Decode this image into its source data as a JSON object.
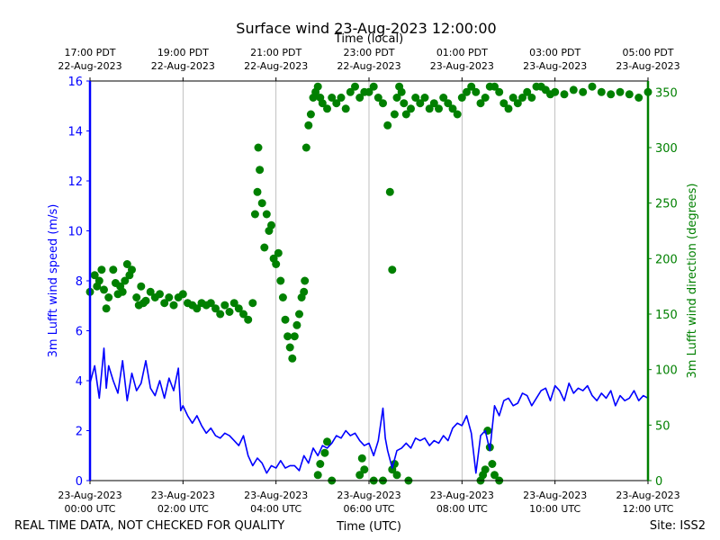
{
  "chart_data": {
    "type": "line",
    "title": "Surface wind 23-Aug-2023 12:00:00",
    "top_axis_label": "Time (local)",
    "xlabel": "Time (UTC)",
    "ylabel_left": "3m Lufft wind speed (m/s)",
    "ylabel_right": "3m Lufft wind direction (degrees)",
    "footer_left": "REAL TIME DATA, NOT CHECKED FOR QUALITY",
    "footer_right": "Site: ISS2",
    "xlim_hours": [
      0,
      12
    ],
    "ylim_left": [
      0,
      16
    ],
    "ylim_right": [
      0,
      360
    ],
    "grid": "vertical",
    "left_ticks": [
      0,
      2,
      4,
      6,
      8,
      10,
      12,
      14,
      16
    ],
    "right_ticks": [
      0,
      50,
      100,
      150,
      200,
      250,
      300,
      350
    ],
    "bottom_ticks": [
      {
        "h": 0,
        "l1": "23-Aug-2023",
        "l2": "00:00 UTC"
      },
      {
        "h": 2,
        "l1": "23-Aug-2023",
        "l2": "02:00 UTC"
      },
      {
        "h": 4,
        "l1": "23-Aug-2023",
        "l2": "04:00 UTC"
      },
      {
        "h": 6,
        "l1": "23-Aug-2023",
        "l2": "06:00 UTC"
      },
      {
        "h": 8,
        "l1": "23-Aug-2023",
        "l2": "08:00 UTC"
      },
      {
        "h": 10,
        "l1": "23-Aug-2023",
        "l2": "10:00 UTC"
      },
      {
        "h": 12,
        "l1": "23-Aug-2023",
        "l2": "12:00 UTC"
      }
    ],
    "top_ticks": [
      {
        "h": 0,
        "l1": "17:00 PDT",
        "l2": "22-Aug-2023"
      },
      {
        "h": 2,
        "l1": "19:00 PDT",
        "l2": "22-Aug-2023"
      },
      {
        "h": 4,
        "l1": "21:00 PDT",
        "l2": "22-Aug-2023"
      },
      {
        "h": 6,
        "l1": "23:00 PDT",
        "l2": "22-Aug-2023"
      },
      {
        "h": 8,
        "l1": "01:00 PDT",
        "l2": "23-Aug-2023"
      },
      {
        "h": 10,
        "l1": "03:00 PDT",
        "l2": "23-Aug-2023"
      },
      {
        "h": 12,
        "l1": "05:00 PDT",
        "l2": "23-Aug-2023"
      }
    ],
    "series": [
      {
        "name": "3m Lufft wind speed",
        "axis": "left",
        "color": "#0000ff",
        "style": "line",
        "x": [
          0,
          0.1,
          0.2,
          0.3,
          0.35,
          0.4,
          0.5,
          0.6,
          0.7,
          0.8,
          0.9,
          1.0,
          1.1,
          1.2,
          1.3,
          1.4,
          1.5,
          1.6,
          1.7,
          1.8,
          1.9,
          1.95,
          2.0,
          2.1,
          2.2,
          2.3,
          2.4,
          2.5,
          2.6,
          2.7,
          2.8,
          2.9,
          3.0,
          3.1,
          3.2,
          3.3,
          3.4,
          3.5,
          3.6,
          3.7,
          3.8,
          3.9,
          4.0,
          4.1,
          4.2,
          4.3,
          4.4,
          4.5,
          4.6,
          4.7,
          4.8,
          4.9,
          5.0,
          5.1,
          5.2,
          5.3,
          5.4,
          5.5,
          5.6,
          5.7,
          5.8,
          5.9,
          6.0,
          6.1,
          6.2,
          6.3,
          6.35,
          6.4,
          6.5,
          6.6,
          6.7,
          6.8,
          6.9,
          7.0,
          7.1,
          7.2,
          7.3,
          7.4,
          7.5,
          7.6,
          7.7,
          7.8,
          7.9,
          8.0,
          8.1,
          8.2,
          8.3,
          8.4,
          8.5,
          8.6,
          8.7,
          8.8,
          8.9,
          9.0,
          9.1,
          9.2,
          9.3,
          9.4,
          9.5,
          9.6,
          9.7,
          9.8,
          9.9,
          10.0,
          10.1,
          10.2,
          10.3,
          10.4,
          10.5,
          10.6,
          10.7,
          10.8,
          10.9,
          11.0,
          11.1,
          11.2,
          11.3,
          11.4,
          11.5,
          11.6,
          11.7,
          11.8,
          11.9,
          12.0
        ],
        "values": [
          3.9,
          4.6,
          3.3,
          5.3,
          3.7,
          4.6,
          4.0,
          3.5,
          4.8,
          3.2,
          4.3,
          3.6,
          3.9,
          4.8,
          3.7,
          3.4,
          4.0,
          3.3,
          4.1,
          3.6,
          4.5,
          2.8,
          3.0,
          2.6,
          2.3,
          2.6,
          2.2,
          1.9,
          2.1,
          1.8,
          1.7,
          1.9,
          1.8,
          1.6,
          1.4,
          1.8,
          1.0,
          0.6,
          0.9,
          0.7,
          0.3,
          0.6,
          0.5,
          0.8,
          0.5,
          0.6,
          0.6,
          0.4,
          1.0,
          0.7,
          1.3,
          1.0,
          1.4,
          1.3,
          1.5,
          1.8,
          1.7,
          2.0,
          1.8,
          1.9,
          1.6,
          1.4,
          1.5,
          1.0,
          1.6,
          2.9,
          1.7,
          1.2,
          0.5,
          1.2,
          1.3,
          1.5,
          1.3,
          1.7,
          1.6,
          1.7,
          1.4,
          1.6,
          1.5,
          1.8,
          1.6,
          2.1,
          2.3,
          2.2,
          2.6,
          1.9,
          0.3,
          1.8,
          2.0,
          1.2,
          3.0,
          2.6,
          3.2,
          3.3,
          3.0,
          3.1,
          3.5,
          3.4,
          3.0,
          3.3,
          3.6,
          3.7,
          3.2,
          3.8,
          3.6,
          3.2,
          3.9,
          3.5,
          3.7,
          3.6,
          3.8,
          3.4,
          3.2,
          3.5,
          3.3,
          3.6,
          3.0,
          3.4,
          3.2,
          3.3,
          3.6,
          3.2,
          3.4,
          3.3
        ]
      },
      {
        "name": "3m Lufft wind direction",
        "axis": "right",
        "color": "#008000",
        "style": "scatter",
        "x": [
          0,
          0.1,
          0.15,
          0.2,
          0.25,
          0.3,
          0.35,
          0.4,
          0.5,
          0.55,
          0.6,
          0.65,
          0.7,
          0.75,
          0.8,
          0.85,
          0.9,
          1.0,
          1.05,
          1.1,
          1.15,
          1.2,
          1.3,
          1.4,
          1.5,
          1.6,
          1.7,
          1.8,
          1.9,
          2.0,
          2.1,
          2.2,
          2.3,
          2.4,
          2.5,
          2.6,
          2.7,
          2.8,
          2.9,
          3.0,
          3.1,
          3.2,
          3.3,
          3.4,
          3.5,
          3.55,
          3.6,
          3.62,
          3.65,
          3.7,
          3.75,
          3.8,
          3.85,
          3.9,
          3.95,
          4.0,
          4.05,
          4.1,
          4.15,
          4.2,
          4.25,
          4.3,
          4.35,
          4.4,
          4.45,
          4.5,
          4.55,
          4.6,
          4.62,
          4.65,
          4.7,
          4.75,
          4.8,
          4.85,
          4.9,
          4.95,
          5.0,
          5.1,
          5.2,
          5.3,
          5.4,
          5.5,
          5.6,
          5.7,
          5.8,
          5.9,
          6.0,
          6.1,
          6.2,
          6.3,
          6.4,
          6.45,
          6.5,
          6.55,
          6.6,
          6.65,
          6.7,
          6.75,
          6.8,
          6.9,
          7.0,
          7.1,
          7.2,
          7.3,
          7.4,
          7.5,
          7.6,
          7.7,
          7.8,
          7.9,
          8.0,
          8.1,
          8.2,
          8.3,
          8.4,
          8.5,
          8.6,
          8.7,
          8.8,
          8.9,
          9.0,
          9.1,
          9.2,
          9.3,
          9.4,
          9.5,
          9.6,
          9.7,
          9.8,
          9.9,
          10.0,
          10.2,
          10.4,
          10.6,
          10.8,
          11.0,
          11.2,
          11.4,
          11.6,
          11.8,
          12.0,
          4.9,
          4.95,
          5.05,
          5.1,
          5.2,
          5.8,
          5.85,
          5.9,
          6.1,
          6.3,
          6.5,
          6.55,
          6.6,
          6.85,
          8.4,
          8.45,
          8.5,
          8.55,
          8.6,
          8.65,
          8.7,
          8.8
        ],
        "values": [
          170,
          185,
          175,
          180,
          190,
          172,
          155,
          165,
          190,
          178,
          168,
          175,
          170,
          180,
          195,
          185,
          190,
          165,
          158,
          175,
          160,
          162,
          170,
          165,
          168,
          160,
          165,
          158,
          165,
          168,
          160,
          158,
          155,
          160,
          158,
          160,
          155,
          150,
          158,
          152,
          160,
          155,
          150,
          145,
          160,
          240,
          260,
          300,
          280,
          250,
          210,
          240,
          225,
          230,
          200,
          195,
          205,
          180,
          165,
          145,
          130,
          120,
          110,
          130,
          140,
          150,
          165,
          170,
          180,
          300,
          320,
          330,
          345,
          350,
          355,
          345,
          340,
          335,
          345,
          340,
          345,
          335,
          350,
          355,
          345,
          350,
          350,
          355,
          345,
          340,
          320,
          260,
          190,
          330,
          345,
          355,
          350,
          340,
          330,
          335,
          345,
          340,
          345,
          335,
          340,
          335,
          345,
          340,
          335,
          330,
          345,
          350,
          355,
          350,
          340,
          345,
          355,
          355,
          350,
          340,
          335,
          345,
          340,
          345,
          350,
          345,
          355,
          355,
          352,
          348,
          350,
          348,
          352,
          350,
          355,
          350,
          348,
          350,
          348,
          345,
          350,
          5,
          15,
          25,
          35,
          0,
          5,
          20,
          10,
          0,
          0,
          10,
          15,
          5,
          0,
          0,
          5,
          10,
          45,
          30,
          15,
          5,
          0
        ]
      }
    ]
  }
}
